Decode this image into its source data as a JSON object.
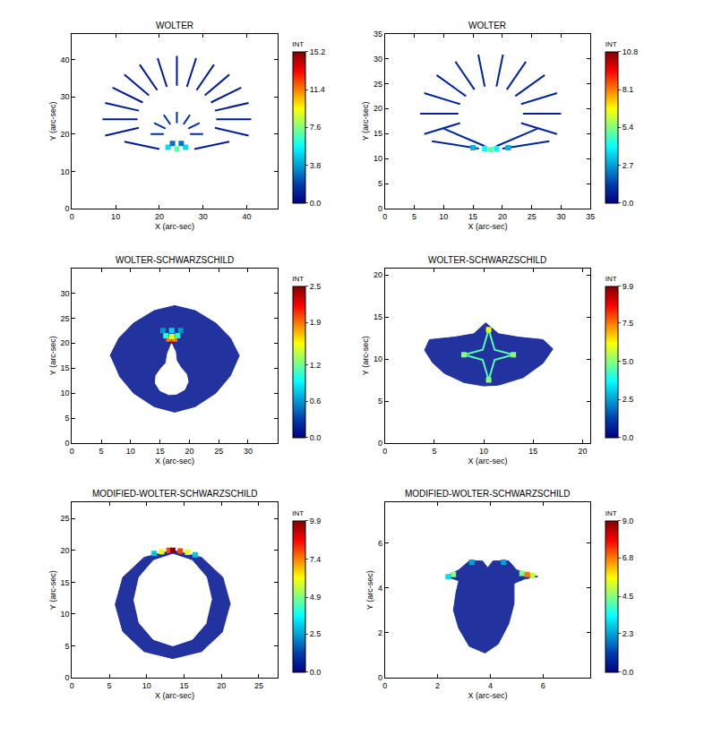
{
  "chart_data": [
    {
      "type": "scatter",
      "title": "WOLTER",
      "xlabel": "X (arc-sec)",
      "ylabel": "Y (arc-sec)",
      "xlim": [
        0,
        47
      ],
      "xticks": [
        0,
        10,
        20,
        30,
        40
      ],
      "ylim": [
        0,
        47
      ],
      "yticks": [
        0,
        10,
        20,
        30,
        40
      ],
      "grid": false,
      "colorbar": {
        "title": "INT",
        "range": [
          0,
          15.2
        ],
        "ticks": [
          {
            "value": 0,
            "label": "0.0"
          },
          3.8,
          7.6,
          11.4,
          15.2
        ]
      },
      "series": [
        {
          "type": "line",
          "value": 0.8,
          "x": [
            15.3,
            7.6,
            null,
            15,
            7,
            null,
            15.3,
            7.6,
            null,
            16.2,
            9.3,
            null,
            17.6,
            12.0,
            null,
            19.5,
            15.5,
            null,
            21.7,
            19.6,
            null,
            24,
            24,
            null,
            26.3,
            28.4,
            null,
            28.5,
            32.5,
            null,
            30.4,
            36.0,
            null,
            31.8,
            38.7,
            null,
            32.7,
            40.4,
            null,
            33,
            41,
            null,
            32.7,
            40.4,
            null,
            12,
            20,
            null,
            36,
            28
          ],
          "y": [
            21.7,
            19.6,
            null,
            24,
            24,
            null,
            26.3,
            28.4,
            null,
            28.5,
            32.5,
            null,
            30.4,
            36.0,
            null,
            31.8,
            38.7,
            null,
            32.7,
            40.4,
            null,
            33,
            41,
            null,
            32.7,
            40.4,
            null,
            31.8,
            38.7,
            null,
            30.4,
            36.0,
            null,
            28.5,
            32.5,
            null,
            26.3,
            28.4,
            null,
            24,
            24,
            null,
            21.7,
            19.6,
            null,
            18,
            16,
            null,
            18,
            16
          ]
        },
        {
          "type": "line",
          "value": 1.5,
          "x": [
            21,
            18,
            null,
            21.4,
            18.8,
            null,
            22.5,
            21,
            null,
            24,
            24,
            null,
            25.5,
            27,
            null,
            26.6,
            29.2,
            null,
            27,
            30
          ],
          "y": [
            20,
            20,
            null,
            21.5,
            23,
            null,
            22.6,
            25.2,
            null,
            23,
            26,
            null,
            22.6,
            25.2,
            null,
            21.5,
            23,
            null,
            20,
            20
          ]
        },
        {
          "type": "scatter",
          "x": [
            22,
            24,
            26,
            23,
            25
          ],
          "y": [
            16.5,
            16,
            16.5,
            17.5,
            17.5
          ],
          "values": [
            5,
            7,
            5,
            3,
            3
          ]
        }
      ]
    },
    {
      "type": "scatter",
      "title": "WOLTER",
      "xlabel": "X (arc-sec)",
      "ylabel": "Y (arc-sec)",
      "xlim": [
        0,
        35
      ],
      "xticks": [
        0,
        5,
        10,
        15,
        20,
        25,
        30,
        35
      ],
      "ylim": [
        0,
        35
      ],
      "yticks": [
        0,
        5,
        10,
        15,
        20,
        25,
        30,
        35
      ],
      "grid": false,
      "colorbar": {
        "title": "INT",
        "range": [
          0,
          10.8
        ],
        "ticks": [
          {
            "value": 0,
            "label": "0.0"
          },
          2.7,
          5.4,
          8.1,
          10.8
        ]
      },
      "series": [
        {
          "type": "line",
          "value": 0.8,
          "x": [
            12.8,
            6.7,
            null,
            12.5,
            6,
            null,
            12.8,
            6.7,
            null,
            13.8,
            8.8,
            null,
            15.25,
            12,
            null,
            17,
            15.9,
            null,
            19,
            20.1,
            null,
            20.75,
            24,
            null,
            22.2,
            27.2,
            null,
            23.2,
            29.3,
            null,
            23.5,
            30,
            null,
            23.2,
            29.3,
            null,
            8,
            16,
            null,
            28,
            20,
            null,
            10,
            17,
            null,
            26,
            19
          ],
          "y": [
            17.1,
            14.9,
            null,
            19,
            19,
            null,
            20.9,
            23.1,
            null,
            22.5,
            26.7,
            null,
            23.8,
            29.4,
            null,
            24.4,
            30.8,
            null,
            24.4,
            30.8,
            null,
            23.8,
            29.4,
            null,
            22.5,
            26.7,
            null,
            20.9,
            23.1,
            null,
            19,
            19,
            null,
            17.1,
            14.9,
            null,
            13.5,
            12,
            null,
            13.5,
            12,
            null,
            16,
            12.5,
            null,
            16,
            12.5
          ]
        },
        {
          "type": "scatter",
          "x": [
            15,
            17,
            18,
            19,
            21
          ],
          "y": [
            12.2,
            12,
            11.8,
            12,
            12.2
          ],
          "values": [
            3,
            4,
            5,
            4,
            3
          ]
        }
      ]
    },
    {
      "type": "scatter",
      "title": "WOLTER-SCHWARZSCHILD",
      "xlabel": "X (arc-sec)",
      "ylabel": "Y (arc-sec)",
      "xlim": [
        0,
        35
      ],
      "xticks": [
        0,
        5,
        10,
        15,
        20,
        25,
        30
      ],
      "ylim": [
        0,
        35
      ],
      "yticks": [
        0,
        5,
        10,
        15,
        20,
        25,
        30
      ],
      "grid": false,
      "colorbar": {
        "title": "INT",
        "range": [
          0,
          2.5
        ],
        "ticks": [
          {
            "value": 0,
            "label": "0.0"
          },
          0.6,
          1.2,
          1.9,
          2.5
        ]
      },
      "series": [
        {
          "type": "area",
          "color": "#22339f",
          "x": [
            6.5,
            8,
            10.5,
            14,
            17.5,
            21,
            24.5,
            27,
            28.5,
            27,
            24.5,
            21,
            17.5,
            14,
            10.5,
            8
          ],
          "y": [
            17.5,
            21,
            24,
            26.5,
            27.5,
            26.5,
            24,
            21,
            17.5,
            13.5,
            10,
            7.3,
            6.2,
            7.3,
            10,
            13.5
          ]
        },
        {
          "type": "area",
          "color": "#ffffff",
          "x": [
            17,
            16.3,
            16,
            15.2,
            14.3,
            14.2,
            15,
            16.5,
            17.8,
            19.2,
            19.8,
            19.5,
            18.5,
            17.8,
            17.6
          ],
          "y": [
            20,
            18,
            16,
            15,
            13.5,
            12,
            10.5,
            9.7,
            9.8,
            10.7,
            12.3,
            13.8,
            15.2,
            16.5,
            18.5
          ]
        },
        {
          "type": "scatter",
          "x": [
            17,
            16.5,
            17.5,
            17,
            16,
            18,
            17,
            15.5,
            18.5
          ],
          "y": [
            20.5,
            20.8,
            20.8,
            21.3,
            21.5,
            21.5,
            22.5,
            22.5,
            22.5
          ],
          "values": [
            2.5,
            1.9,
            1.9,
            1.5,
            1,
            1,
            0.8,
            0.6,
            0.6
          ]
        }
      ]
    },
    {
      "type": "scatter",
      "title": "WOLTER-SCHWARZSCHILD",
      "xlabel": "X (arc-sec)",
      "ylabel": "Y (arc-sec)",
      "xlim": [
        0,
        20.8
      ],
      "xticks": [
        0,
        5,
        10,
        15,
        20
      ],
      "ylim": [
        0,
        20.8
      ],
      "yticks": [
        0,
        5,
        10,
        15,
        20
      ],
      "grid": false,
      "colorbar": {
        "title": "INT",
        "range": [
          0,
          9.9
        ],
        "ticks": [
          {
            "value": 0,
            "label": "0.0"
          },
          2.5,
          {
            "value": 5,
            "label": "5.0"
          },
          7.5,
          9.9
        ]
      },
      "series": [
        {
          "type": "area",
          "color": "#22339f",
          "x": [
            4,
            4.5,
            7,
            9,
            10.2,
            11.5,
            13.5,
            16,
            17,
            16,
            14,
            11.5,
            10,
            8,
            6,
            4.7
          ],
          "y": [
            11,
            12.3,
            12.6,
            13,
            14.3,
            13,
            12.6,
            12.3,
            11.2,
            9.5,
            7.8,
            6.9,
            6.8,
            7.2,
            8.3,
            9.7
          ]
        },
        {
          "type": "line",
          "value": 4.5,
          "x": [
            10.5,
            9.9,
            8,
            9.9,
            10.5,
            11.1,
            13,
            11.1,
            10.5
          ],
          "y": [
            13.5,
            11.1,
            10.5,
            9.9,
            7.5,
            9.9,
            10.5,
            11.1,
            13.5
          ]
        },
        {
          "type": "scatter",
          "x": [
            10.5,
            8,
            10.5,
            13
          ],
          "y": [
            13.5,
            10.5,
            7.5,
            10.5
          ],
          "values": [
            6,
            5,
            5,
            5
          ]
        }
      ]
    },
    {
      "type": "scatter",
      "title": "MODIFIED-WOLTER-SCHWARZSCHILD",
      "xlabel": "X (arc-sec)",
      "ylabel": "Y (arc-sec)",
      "xlim": [
        0,
        27.5
      ],
      "xticks": [
        0,
        5,
        10,
        15,
        20,
        25
      ],
      "ylim": [
        0,
        27.5
      ],
      "yticks": [
        0,
        5,
        10,
        15,
        20,
        25
      ],
      "grid": false,
      "colorbar": {
        "title": "INT",
        "range": [
          0,
          9.9
        ],
        "ticks": [
          {
            "value": 0,
            "label": "0.0"
          },
          2.5,
          4.9,
          7.4,
          9.9
        ]
      },
      "series": [
        {
          "type": "area",
          "color": "#22339f",
          "x": [
            21.2,
            20.2,
            17.35,
            13.5,
            9.65,
            6.8,
            5.8,
            6.8,
            9.65,
            13.5,
            17.35,
            20.2
          ],
          "y": [
            11.5,
            15.75,
            18.9,
            20,
            18.9,
            15.75,
            11.5,
            7.25,
            4.1,
            3,
            4.1,
            7.25
          ]
        },
        {
          "type": "area",
          "color": "#ffffff",
          "x": [
            18.7,
            18.0,
            16.1,
            13.5,
            10.9,
            9.0,
            8.3,
            9.0,
            10.9,
            13.5,
            16.1,
            18.0
          ],
          "y": [
            12.2,
            15.8,
            18.4,
            19.4,
            18.4,
            15.8,
            12.2,
            8.6,
            6.0,
            5.0,
            6.0,
            8.6
          ]
        },
        {
          "type": "scatter",
          "x": [
            11,
            12,
            13,
            13.5,
            14.5,
            15.5,
            16.5
          ],
          "y": [
            19.5,
            19.8,
            20,
            20,
            19.9,
            19.7,
            19.3
          ],
          "values": [
            3,
            6,
            8,
            9.9,
            8,
            6,
            3
          ]
        }
      ]
    },
    {
      "type": "scatter",
      "title": "MODIFIED-WOLTER-SCHWARZSCHILD",
      "xlabel": "X (arc-sec)",
      "ylabel": "Y (arc-sec)",
      "xlim": [
        0,
        7.8
      ],
      "xticks": [
        0,
        2,
        4,
        6
      ],
      "ylim": [
        0,
        7.8
      ],
      "yticks": [
        0,
        2,
        4,
        6
      ],
      "grid": false,
      "colorbar": {
        "title": "INT",
        "range": [
          0,
          9
        ],
        "ticks": [
          {
            "value": 0,
            "label": "0.0"
          },
          2.3,
          4.5,
          6.8,
          {
            "value": 9,
            "label": "9.0"
          }
        ]
      },
      "series": [
        {
          "type": "area",
          "color": "#22339f",
          "x": [
            2.3,
            2.8,
            3.2,
            3.7,
            3.9,
            4.1,
            4.7,
            5.0,
            5.8,
            5.3,
            4.9,
            4.9,
            4.7,
            4.3,
            3.8,
            3.2,
            2.8,
            2.6,
            2.7,
            2.8
          ],
          "y": [
            4.5,
            4.8,
            5.2,
            5.2,
            4.9,
            5.2,
            5.2,
            4.8,
            4.5,
            4.4,
            4.2,
            3.3,
            2.4,
            1.5,
            1.1,
            1.4,
            2.2,
            3.0,
            3.8,
            4.3
          ]
        },
        {
          "type": "scatter",
          "x": [
            2.4,
            2.6,
            5.6,
            5.4,
            5.2,
            3.3,
            4.5
          ],
          "y": [
            4.5,
            4.6,
            4.55,
            4.6,
            4.65,
            5.15,
            5.15
          ],
          "values": [
            3,
            4.5,
            5,
            6.8,
            4.5,
            2.3,
            2.3
          ]
        }
      ]
    }
  ]
}
